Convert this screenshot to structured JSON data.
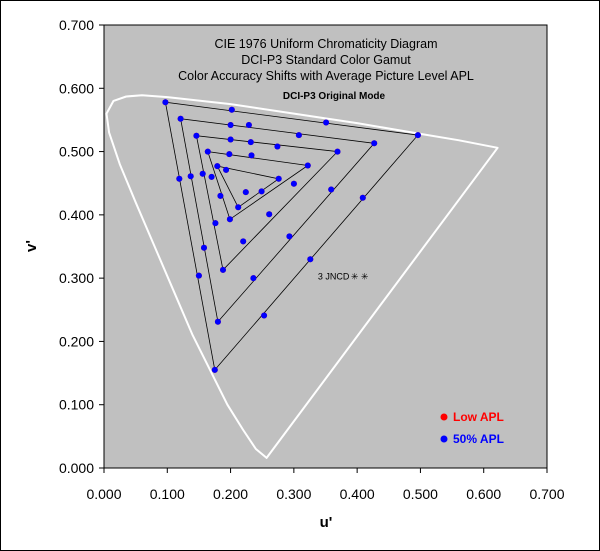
{
  "chart_data": {
    "type": "scatter",
    "title_lines": [
      "CIE 1976 Uniform Chromaticity Diagram",
      "DCI-P3 Standard Color Gamut",
      "Color Accuracy Shifts with Average Picture Level APL"
    ],
    "subtitle": "DCI-P3 Original Mode",
    "xlabel": "u'",
    "ylabel": "v'",
    "xlim": [
      0,
      0.7
    ],
    "ylim": [
      0,
      0.7
    ],
    "x_ticks": [
      0,
      0.1,
      0.2,
      0.3,
      0.4,
      0.5,
      0.6,
      0.7
    ],
    "x_tick_labels": [
      "0.000",
      "0.100",
      "0.200",
      "0.300",
      "0.400",
      "0.500",
      "0.600",
      "0.700"
    ],
    "y_ticks": [
      0,
      0.1,
      0.2,
      0.3,
      0.4,
      0.5,
      0.6,
      0.7
    ],
    "y_tick_labels": [
      "0.000",
      "0.100",
      "0.200",
      "0.300",
      "0.400",
      "0.500",
      "0.600",
      "0.700"
    ],
    "grid": false,
    "legend_position": "bottom-right",
    "plot_background": "#c0c0c0",
    "spectral_locus_color": "#ffffff",
    "spectral_locus": [
      [
        0.257,
        0.016
      ],
      [
        0.24,
        0.03
      ],
      [
        0.22,
        0.06
      ],
      [
        0.195,
        0.1
      ],
      [
        0.17,
        0.15
      ],
      [
        0.14,
        0.21
      ],
      [
        0.11,
        0.28
      ],
      [
        0.08,
        0.35
      ],
      [
        0.05,
        0.42
      ],
      [
        0.025,
        0.48
      ],
      [
        0.008,
        0.53
      ],
      [
        0.004,
        0.56
      ],
      [
        0.015,
        0.58
      ],
      [
        0.035,
        0.587
      ],
      [
        0.06,
        0.589
      ],
      [
        0.1,
        0.586
      ],
      [
        0.2,
        0.575
      ],
      [
        0.3,
        0.56
      ],
      [
        0.4,
        0.545
      ],
      [
        0.5,
        0.528
      ],
      [
        0.56,
        0.518
      ],
      [
        0.622,
        0.506
      ]
    ],
    "triangles": [
      [
        [
          0.097,
          0.578
        ],
        [
          0.175,
          0.155
        ],
        [
          0.496,
          0.526
        ]
      ],
      [
        [
          0.121,
          0.552
        ],
        [
          0.18,
          0.231
        ],
        [
          0.427,
          0.513
        ]
      ],
      [
        [
          0.146,
          0.525
        ],
        [
          0.188,
          0.313
        ],
        [
          0.369,
          0.5
        ]
      ],
      [
        [
          0.164,
          0.5
        ],
        [
          0.199,
          0.393
        ],
        [
          0.322,
          0.478
        ]
      ],
      [
        [
          0.179,
          0.477
        ],
        [
          0.212,
          0.412
        ],
        [
          0.276,
          0.457
        ]
      ]
    ],
    "series": [
      {
        "name": "Low APL",
        "color": "#ff0000",
        "points": [
          [
            0.097,
            0.578
          ],
          [
            0.175,
            0.155
          ],
          [
            0.496,
            0.526
          ],
          [
            0.121,
            0.552
          ],
          [
            0.18,
            0.231
          ],
          [
            0.427,
            0.513
          ],
          [
            0.146,
            0.525
          ],
          [
            0.188,
            0.313
          ],
          [
            0.369,
            0.5
          ],
          [
            0.164,
            0.5
          ],
          [
            0.199,
            0.393
          ],
          [
            0.322,
            0.478
          ],
          [
            0.179,
            0.477
          ],
          [
            0.212,
            0.412
          ],
          [
            0.276,
            0.457
          ],
          [
            0.119,
            0.457
          ],
          [
            0.137,
            0.461
          ],
          [
            0.15,
            0.304
          ],
          [
            0.158,
            0.348
          ],
          [
            0.156,
            0.465
          ],
          [
            0.17,
            0.46
          ],
          [
            0.176,
            0.387
          ],
          [
            0.184,
            0.43
          ],
          [
            0.193,
            0.471
          ],
          [
            0.202,
            0.566
          ],
          [
            0.2,
            0.542
          ],
          [
            0.2,
            0.519
          ],
          [
            0.198,
            0.496
          ],
          [
            0.233,
            0.494
          ],
          [
            0.232,
            0.515
          ],
          [
            0.229,
            0.542
          ],
          [
            0.224,
            0.436
          ],
          [
            0.236,
            0.3
          ],
          [
            0.253,
            0.241
          ],
          [
            0.261,
            0.401
          ],
          [
            0.274,
            0.508
          ],
          [
            0.293,
            0.366
          ],
          [
            0.3,
            0.449
          ],
          [
            0.308,
            0.526
          ],
          [
            0.326,
            0.33
          ],
          [
            0.351,
            0.546
          ],
          [
            0.359,
            0.44
          ],
          [
            0.409,
            0.427
          ],
          [
            0.22,
            0.358
          ],
          [
            0.249,
            0.437
          ]
        ]
      },
      {
        "name": "50% APL",
        "color": "#0000ff",
        "points": [
          [
            0.097,
            0.578
          ],
          [
            0.175,
            0.155
          ],
          [
            0.496,
            0.526
          ],
          [
            0.121,
            0.552
          ],
          [
            0.18,
            0.231
          ],
          [
            0.427,
            0.513
          ],
          [
            0.146,
            0.525
          ],
          [
            0.188,
            0.313
          ],
          [
            0.369,
            0.5
          ],
          [
            0.164,
            0.5
          ],
          [
            0.199,
            0.393
          ],
          [
            0.322,
            0.478
          ],
          [
            0.179,
            0.477
          ],
          [
            0.212,
            0.412
          ],
          [
            0.276,
            0.457
          ],
          [
            0.119,
            0.457
          ],
          [
            0.137,
            0.461
          ],
          [
            0.15,
            0.304
          ],
          [
            0.158,
            0.348
          ],
          [
            0.156,
            0.465
          ],
          [
            0.17,
            0.46
          ],
          [
            0.176,
            0.387
          ],
          [
            0.184,
            0.43
          ],
          [
            0.193,
            0.471
          ],
          [
            0.202,
            0.566
          ],
          [
            0.2,
            0.542
          ],
          [
            0.2,
            0.519
          ],
          [
            0.198,
            0.496
          ],
          [
            0.233,
            0.494
          ],
          [
            0.232,
            0.515
          ],
          [
            0.229,
            0.542
          ],
          [
            0.224,
            0.436
          ],
          [
            0.236,
            0.3
          ],
          [
            0.253,
            0.241
          ],
          [
            0.261,
            0.401
          ],
          [
            0.274,
            0.508
          ],
          [
            0.293,
            0.366
          ],
          [
            0.3,
            0.449
          ],
          [
            0.308,
            0.526
          ],
          [
            0.326,
            0.33
          ],
          [
            0.351,
            0.546
          ],
          [
            0.359,
            0.44
          ],
          [
            0.409,
            0.427
          ],
          [
            0.22,
            0.358
          ],
          [
            0.249,
            0.437
          ]
        ]
      }
    ],
    "annotation": {
      "text": "3 JNCD",
      "marker_glyph": "✳ ✳",
      "u": 0.338,
      "v": 0.298
    }
  }
}
